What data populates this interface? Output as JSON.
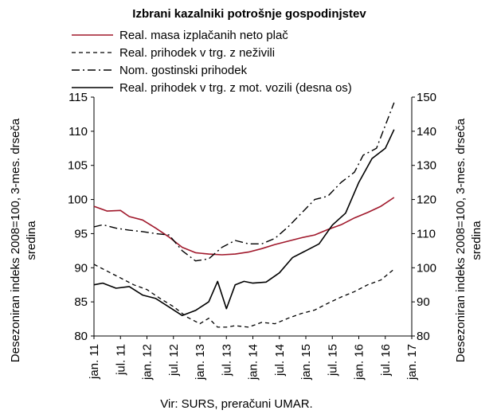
{
  "chart_data": {
    "type": "line",
    "title": "Izbrani kazalniki potrošnje gospodinjstev",
    "source": "Vir: SURS, preračuni UMAR.",
    "ylabel_left": "Desezoniran indeks 2008=100, 3-mes. drseča sredina",
    "ylabel_right": "Desezoniran indeks 2008=100, 3-mes. drseča sredina",
    "ylim_left": [
      80,
      115
    ],
    "yticks_left": [
      "80",
      "85",
      "90",
      "95",
      "100",
      "105",
      "110",
      "115"
    ],
    "ylim_right": [
      80,
      150
    ],
    "yticks_right": [
      "80",
      "90",
      "100",
      "110",
      "120",
      "130",
      "140",
      "150"
    ],
    "x_start": "2011-01",
    "x_end": "2017-01",
    "x_ticks": [
      "jan. 11",
      "jul. 11",
      "jan. 12",
      "jul. 12",
      "jan. 13",
      "jul. 13",
      "jan. 14",
      "jul. 14",
      "jan. 15",
      "jul. 15",
      "jan. 16",
      "jul. 16",
      "jan. 17"
    ],
    "grid": false,
    "legend_position": "top",
    "series": [
      {
        "name": "Real. masa izplačanih neto plač",
        "axis": "left",
        "style": "solid",
        "color": "#a0182b",
        "x": [
          "2011-01",
          "2011-04",
          "2011-07",
          "2011-09",
          "2011-12",
          "2012-03",
          "2012-06",
          "2012-09",
          "2012-12",
          "2013-03",
          "2013-06",
          "2013-09",
          "2013-12",
          "2014-03",
          "2014-06",
          "2014-09",
          "2014-12",
          "2015-03",
          "2015-06",
          "2015-09",
          "2015-12",
          "2016-03",
          "2016-06",
          "2016-09"
        ],
        "values": [
          99.0,
          98.3,
          98.4,
          97.5,
          97.0,
          95.8,
          94.5,
          93.0,
          92.2,
          92.0,
          91.9,
          92.0,
          92.3,
          92.8,
          93.4,
          93.9,
          94.4,
          94.8,
          95.6,
          96.3,
          97.3,
          98.1,
          99.0,
          100.3
        ]
      },
      {
        "name": "Real. prihodek v trg. z neživili",
        "axis": "left",
        "style": "dashed",
        "color": "#000000",
        "x": [
          "2011-01",
          "2011-04",
          "2011-07",
          "2011-10",
          "2012-01",
          "2012-04",
          "2012-07",
          "2012-10",
          "2013-01",
          "2013-03",
          "2013-05",
          "2013-07",
          "2013-09",
          "2013-12",
          "2014-03",
          "2014-06",
          "2014-09",
          "2014-12",
          "2015-03",
          "2015-06",
          "2015-09",
          "2015-12",
          "2016-03",
          "2016-06",
          "2016-09"
        ],
        "values": [
          90.5,
          89.5,
          88.5,
          87.5,
          86.8,
          85.5,
          84.3,
          82.8,
          81.8,
          82.6,
          81.3,
          81.3,
          81.5,
          81.3,
          82.0,
          81.8,
          82.6,
          83.3,
          83.8,
          84.8,
          85.7,
          86.5,
          87.5,
          88.2,
          89.8
        ]
      },
      {
        "name": "Nom. gostinski prihodek",
        "axis": "left",
        "style": "dashdot",
        "color": "#000000",
        "x": [
          "2011-01",
          "2011-03",
          "2011-06",
          "2011-09",
          "2011-12",
          "2012-03",
          "2012-06",
          "2012-09",
          "2012-12",
          "2013-03",
          "2013-06",
          "2013-09",
          "2013-12",
          "2014-03",
          "2014-06",
          "2014-09",
          "2014-12",
          "2015-03",
          "2015-06",
          "2015-09",
          "2015-12",
          "2016-02",
          "2016-05",
          "2016-09"
        ],
        "values": [
          96.0,
          96.3,
          95.8,
          95.5,
          95.3,
          95.0,
          94.8,
          92.5,
          91.0,
          91.3,
          93.0,
          94.0,
          93.5,
          93.5,
          94.3,
          96.0,
          98.0,
          100.0,
          100.5,
          102.5,
          104.0,
          106.5,
          107.5,
          114.2
        ]
      },
      {
        "name": "Real. prihodek v trg. z mot. vozili (desna os)",
        "axis": "right",
        "style": "solid",
        "color": "#000000",
        "x": [
          "2011-01",
          "2011-03",
          "2011-06",
          "2011-09",
          "2011-12",
          "2012-03",
          "2012-06",
          "2012-09",
          "2012-12",
          "2013-03",
          "2013-05",
          "2013-07",
          "2013-09",
          "2013-11",
          "2014-01",
          "2014-04",
          "2014-07",
          "2014-10",
          "2015-01",
          "2015-04",
          "2015-07",
          "2015-10",
          "2016-01",
          "2016-04",
          "2016-07",
          "2016-09"
        ],
        "values": [
          95.0,
          95.5,
          94.0,
          94.5,
          92.0,
          91.0,
          88.5,
          86.0,
          87.5,
          90.0,
          96.0,
          88.0,
          95.0,
          96.0,
          95.5,
          95.8,
          98.5,
          103.0,
          105.0,
          107.0,
          112.5,
          116.0,
          125.0,
          132.0,
          135.0,
          140.5
        ]
      }
    ]
  }
}
